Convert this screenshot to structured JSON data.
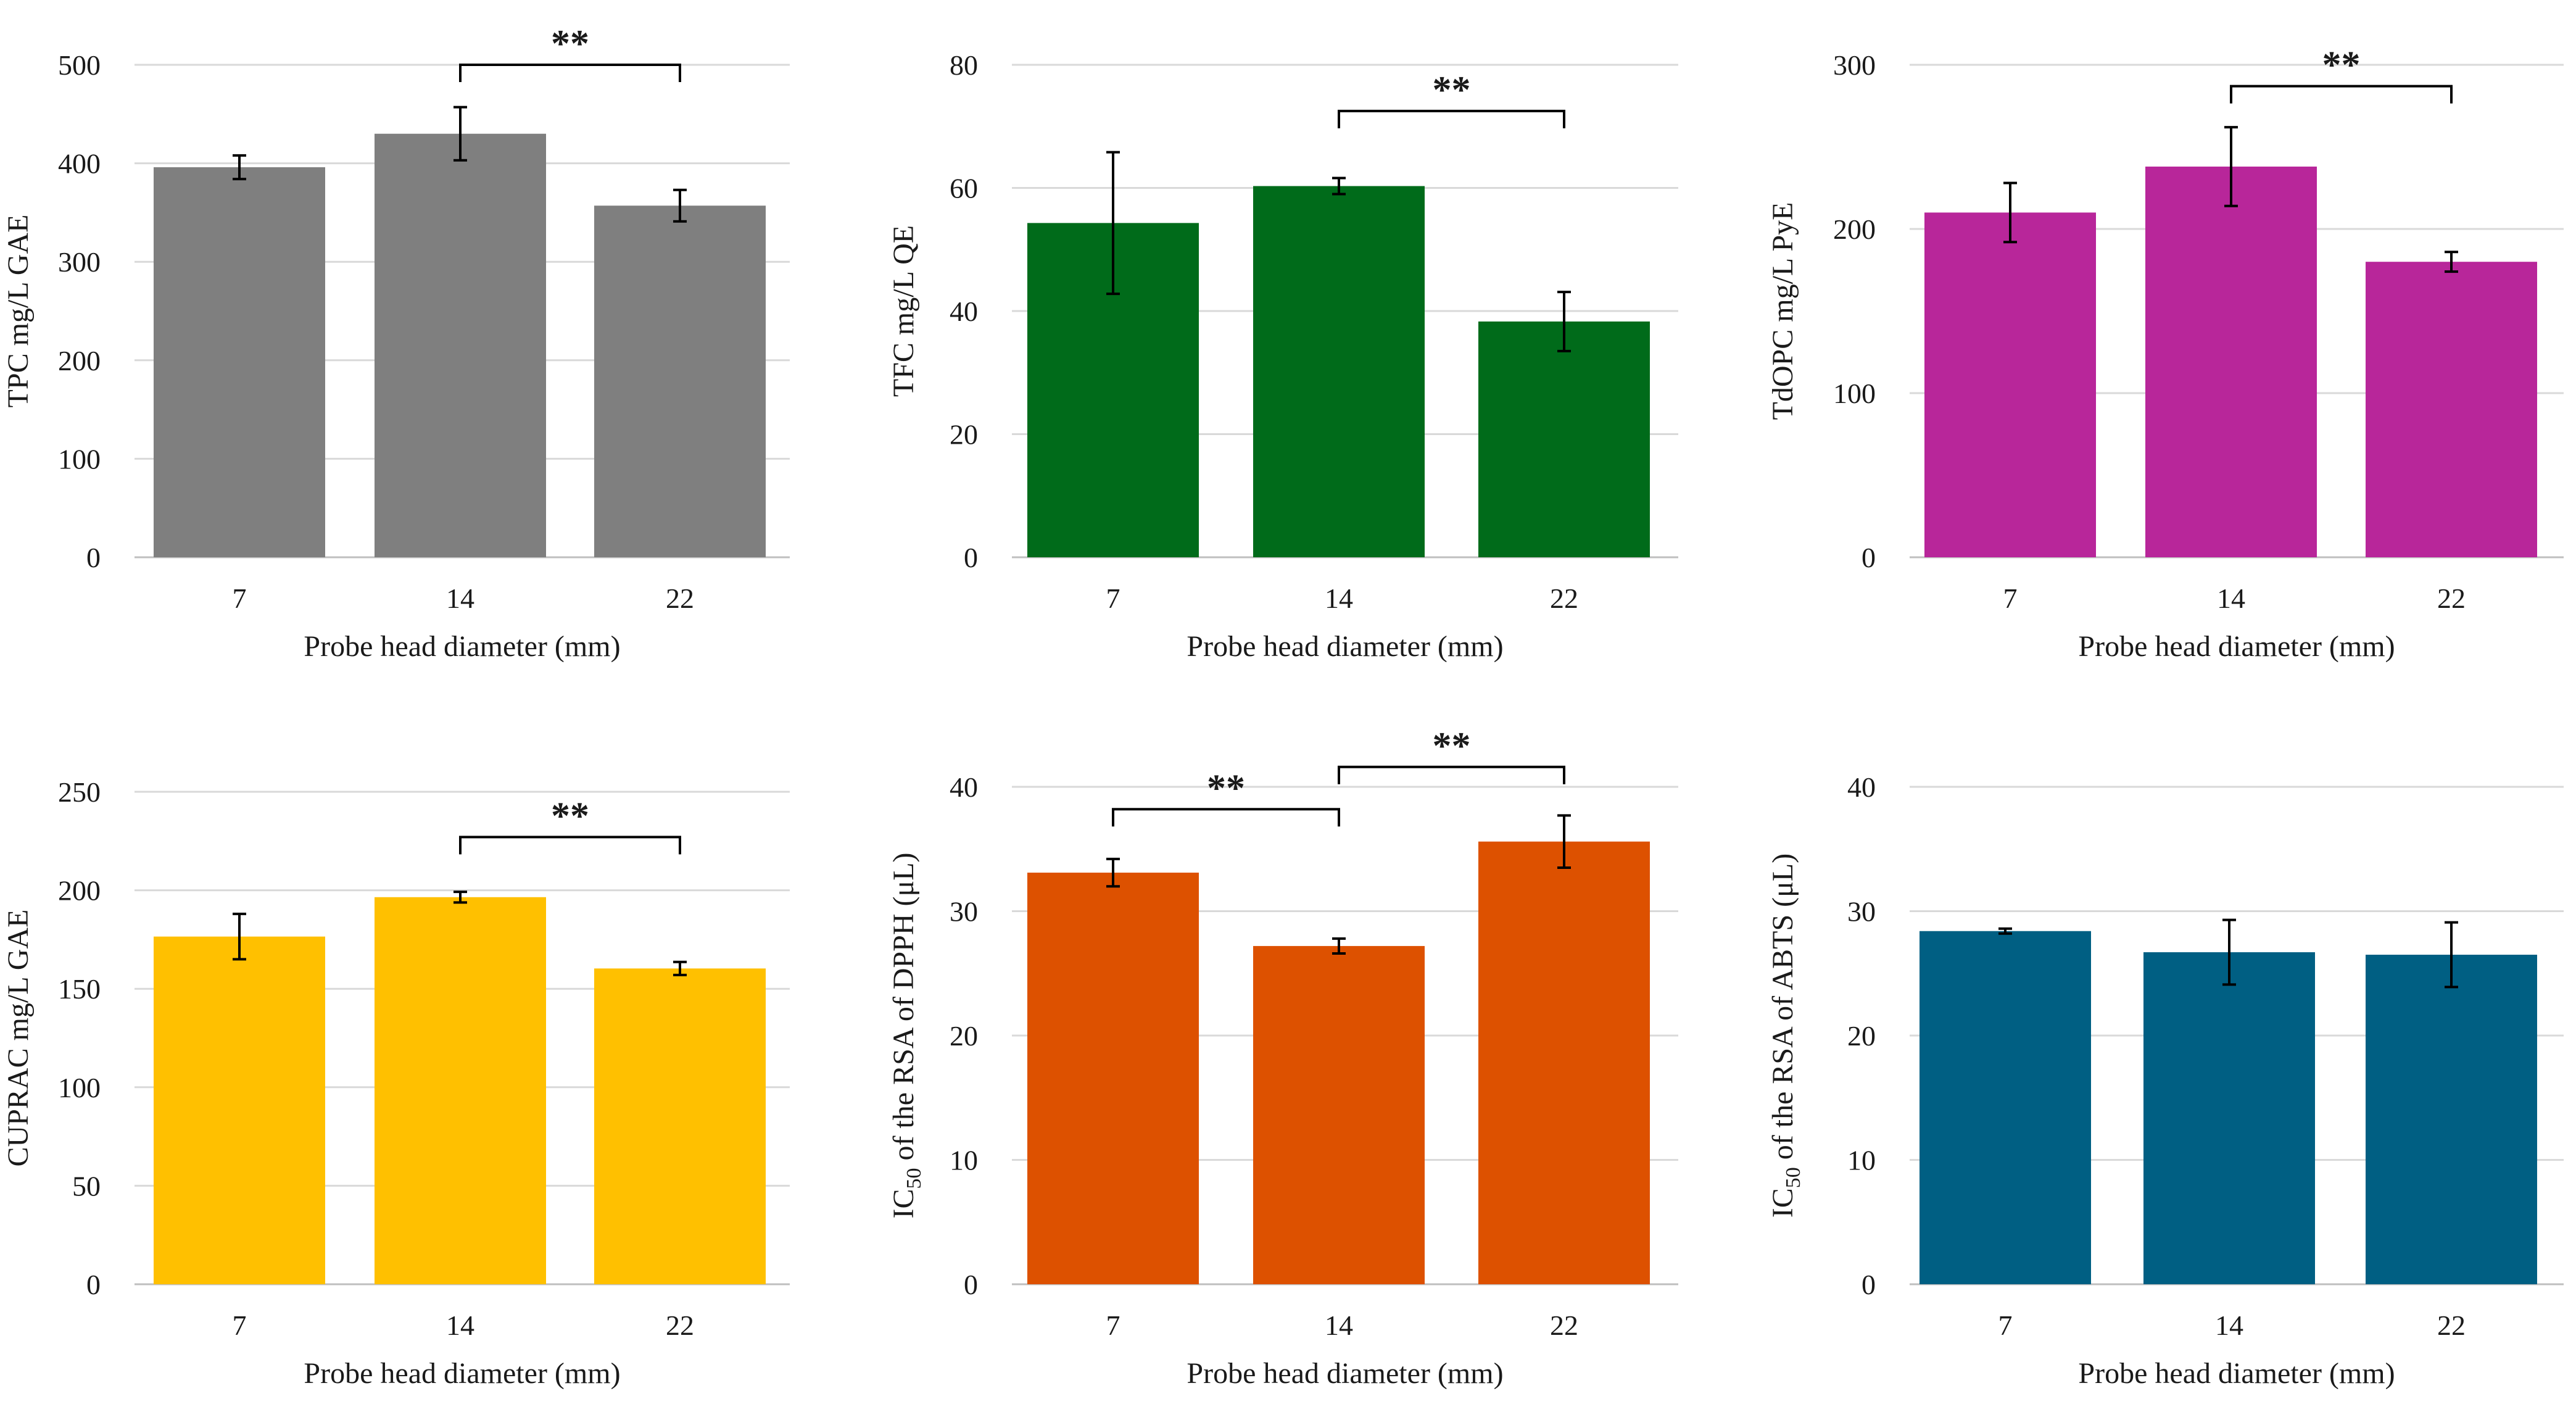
{
  "chart_data": [
    {
      "type": "bar",
      "categories": [
        "7",
        "14",
        "22"
      ],
      "values": [
        396,
        430,
        357
      ],
      "errors": [
        12,
        27,
        16
      ],
      "color": "#7f7f7f",
      "ylabel": "TPC mg/L GAE",
      "xlabel": "Probe head diameter (mm)",
      "ylim": [
        0,
        500
      ],
      "yticks": [
        0,
        100,
        200,
        300,
        400,
        500
      ],
      "significance": [
        {
          "from": 1,
          "to": 2,
          "label": "**",
          "y": 500
        }
      ]
    },
    {
      "type": "bar",
      "categories": [
        "7",
        "14",
        "22"
      ],
      "values": [
        54.3,
        60.3,
        38.3
      ],
      "errors": [
        11.5,
        1.3,
        4.8
      ],
      "color": "#006b1a",
      "ylabel": "TFC mg/L QE",
      "xlabel": "Probe head diameter (mm)",
      "ylim": [
        0,
        80
      ],
      "yticks": [
        0,
        20,
        40,
        60,
        80
      ],
      "significance": [
        {
          "from": 1,
          "to": 2,
          "label": "**",
          "y": 72.5
        }
      ]
    },
    {
      "type": "bar",
      "categories": [
        "7",
        "14",
        "22"
      ],
      "values": [
        210,
        238,
        180
      ],
      "errors": [
        18,
        24,
        6
      ],
      "color": "#b8269a",
      "ylabel": "TdOPC mg/L PyE",
      "xlabel": "Probe head diameter (mm)",
      "ylim": [
        0,
        300
      ],
      "yticks": [
        0,
        100,
        200,
        300
      ],
      "significance": [
        {
          "from": 1,
          "to": 2,
          "label": "**",
          "y": 287
        }
      ]
    },
    {
      "type": "bar",
      "categories": [
        "7",
        "14",
        "22"
      ],
      "values": [
        176.5,
        196.5,
        160.3
      ],
      "errors": [
        11.5,
        2.7,
        3.3
      ],
      "color": "#ffc000",
      "ylabel": "CUPRAC mg/L GAE",
      "xlabel": "Probe head diameter (mm)",
      "ylim": [
        0,
        250
      ],
      "yticks": [
        0,
        50,
        100,
        150,
        200,
        250
      ],
      "significance": [
        {
          "from": 1,
          "to": 2,
          "label": "**",
          "y": 227
        }
      ]
    },
    {
      "type": "bar",
      "categories": [
        "7",
        "14",
        "22"
      ],
      "values": [
        33.1,
        27.2,
        35.6
      ],
      "errors": [
        1.1,
        0.6,
        2.1
      ],
      "color": "#dd5100",
      "ylabel_main": "IC",
      "ylabel_sub": "50",
      "ylabel_rest": " of the RSA of DPPH (μL)",
      "xlabel": "Probe head diameter (mm)",
      "ylim": [
        0,
        40
      ],
      "yticks": [
        0,
        10,
        20,
        30,
        40
      ],
      "significance": [
        {
          "from": 0,
          "to": 1,
          "label": "**",
          "y": 38.2
        },
        {
          "from": 1,
          "to": 2,
          "label": "**",
          "y": 41.6
        }
      ]
    },
    {
      "type": "bar",
      "categories": [
        "7",
        "14",
        "22"
      ],
      "values": [
        28.4,
        26.7,
        26.5
      ],
      "errors": [
        0.2,
        2.6,
        2.6
      ],
      "color": "#005f83",
      "ylabel_main": "IC",
      "ylabel_sub": "50",
      "ylabel_rest": " of the RSA of ABTS (μL)",
      "xlabel": "Probe head diameter (mm)",
      "ylim": [
        0,
        40
      ],
      "yticks": [
        0,
        10,
        20,
        30,
        40
      ],
      "significance": []
    }
  ]
}
